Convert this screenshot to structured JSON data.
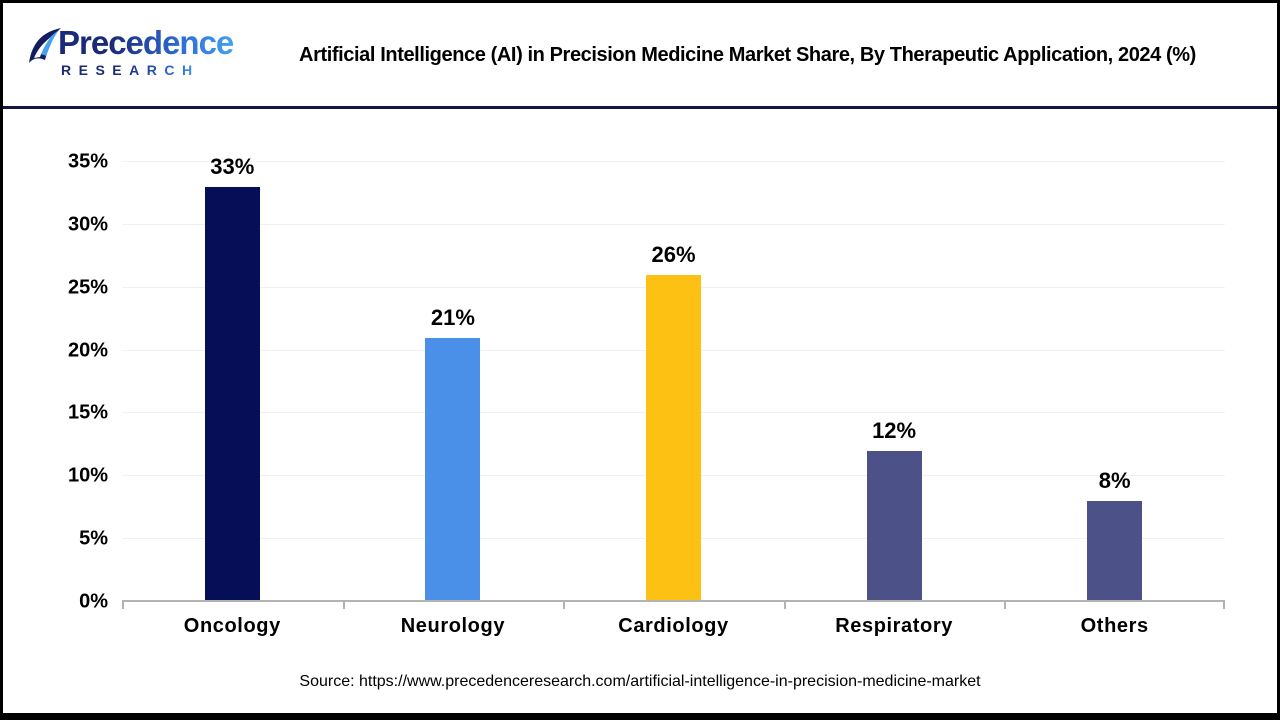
{
  "header": {
    "logo": {
      "brand": "Precedence",
      "sub": "RESEARCH"
    },
    "title": "Artificial Intelligence (AI) in Precision Medicine Market Share, By Therapeutic Application, 2024 (%)"
  },
  "chart_data": {
    "type": "bar",
    "title": "Artificial Intelligence (AI) in Precision Medicine Market Share, By Therapeutic Application, 2024 (%)",
    "categories": [
      "Oncology",
      "Neurology",
      "Cardiology",
      "Respiratory",
      "Others"
    ],
    "values": [
      33,
      21,
      26,
      12,
      8
    ],
    "value_labels": [
      "33%",
      "21%",
      "26%",
      "12%",
      "8%"
    ],
    "bar_colors": [
      "#050E56",
      "#4A8FE8",
      "#FCC113",
      "#4C5187",
      "#4C5187"
    ],
    "xlabel": "",
    "ylabel": "",
    "ylim": [
      0,
      35
    ],
    "ytick_labels": [
      "0%",
      "5%",
      "10%",
      "15%",
      "20%",
      "25%",
      "30%",
      "35%"
    ],
    "grid": true,
    "legend": "none"
  },
  "footer": {
    "source": "Source: https://www.precedenceresearch.com/artificial-intelligence-in-precision-medicine-market"
  },
  "colors": {
    "divider": "#15153F",
    "axis_line": "#B3B3B3",
    "gridline": "#F1F1F1",
    "logo_dark": "#1B2A78",
    "logo_blue": "#44A0F2",
    "text": "#000000"
  }
}
